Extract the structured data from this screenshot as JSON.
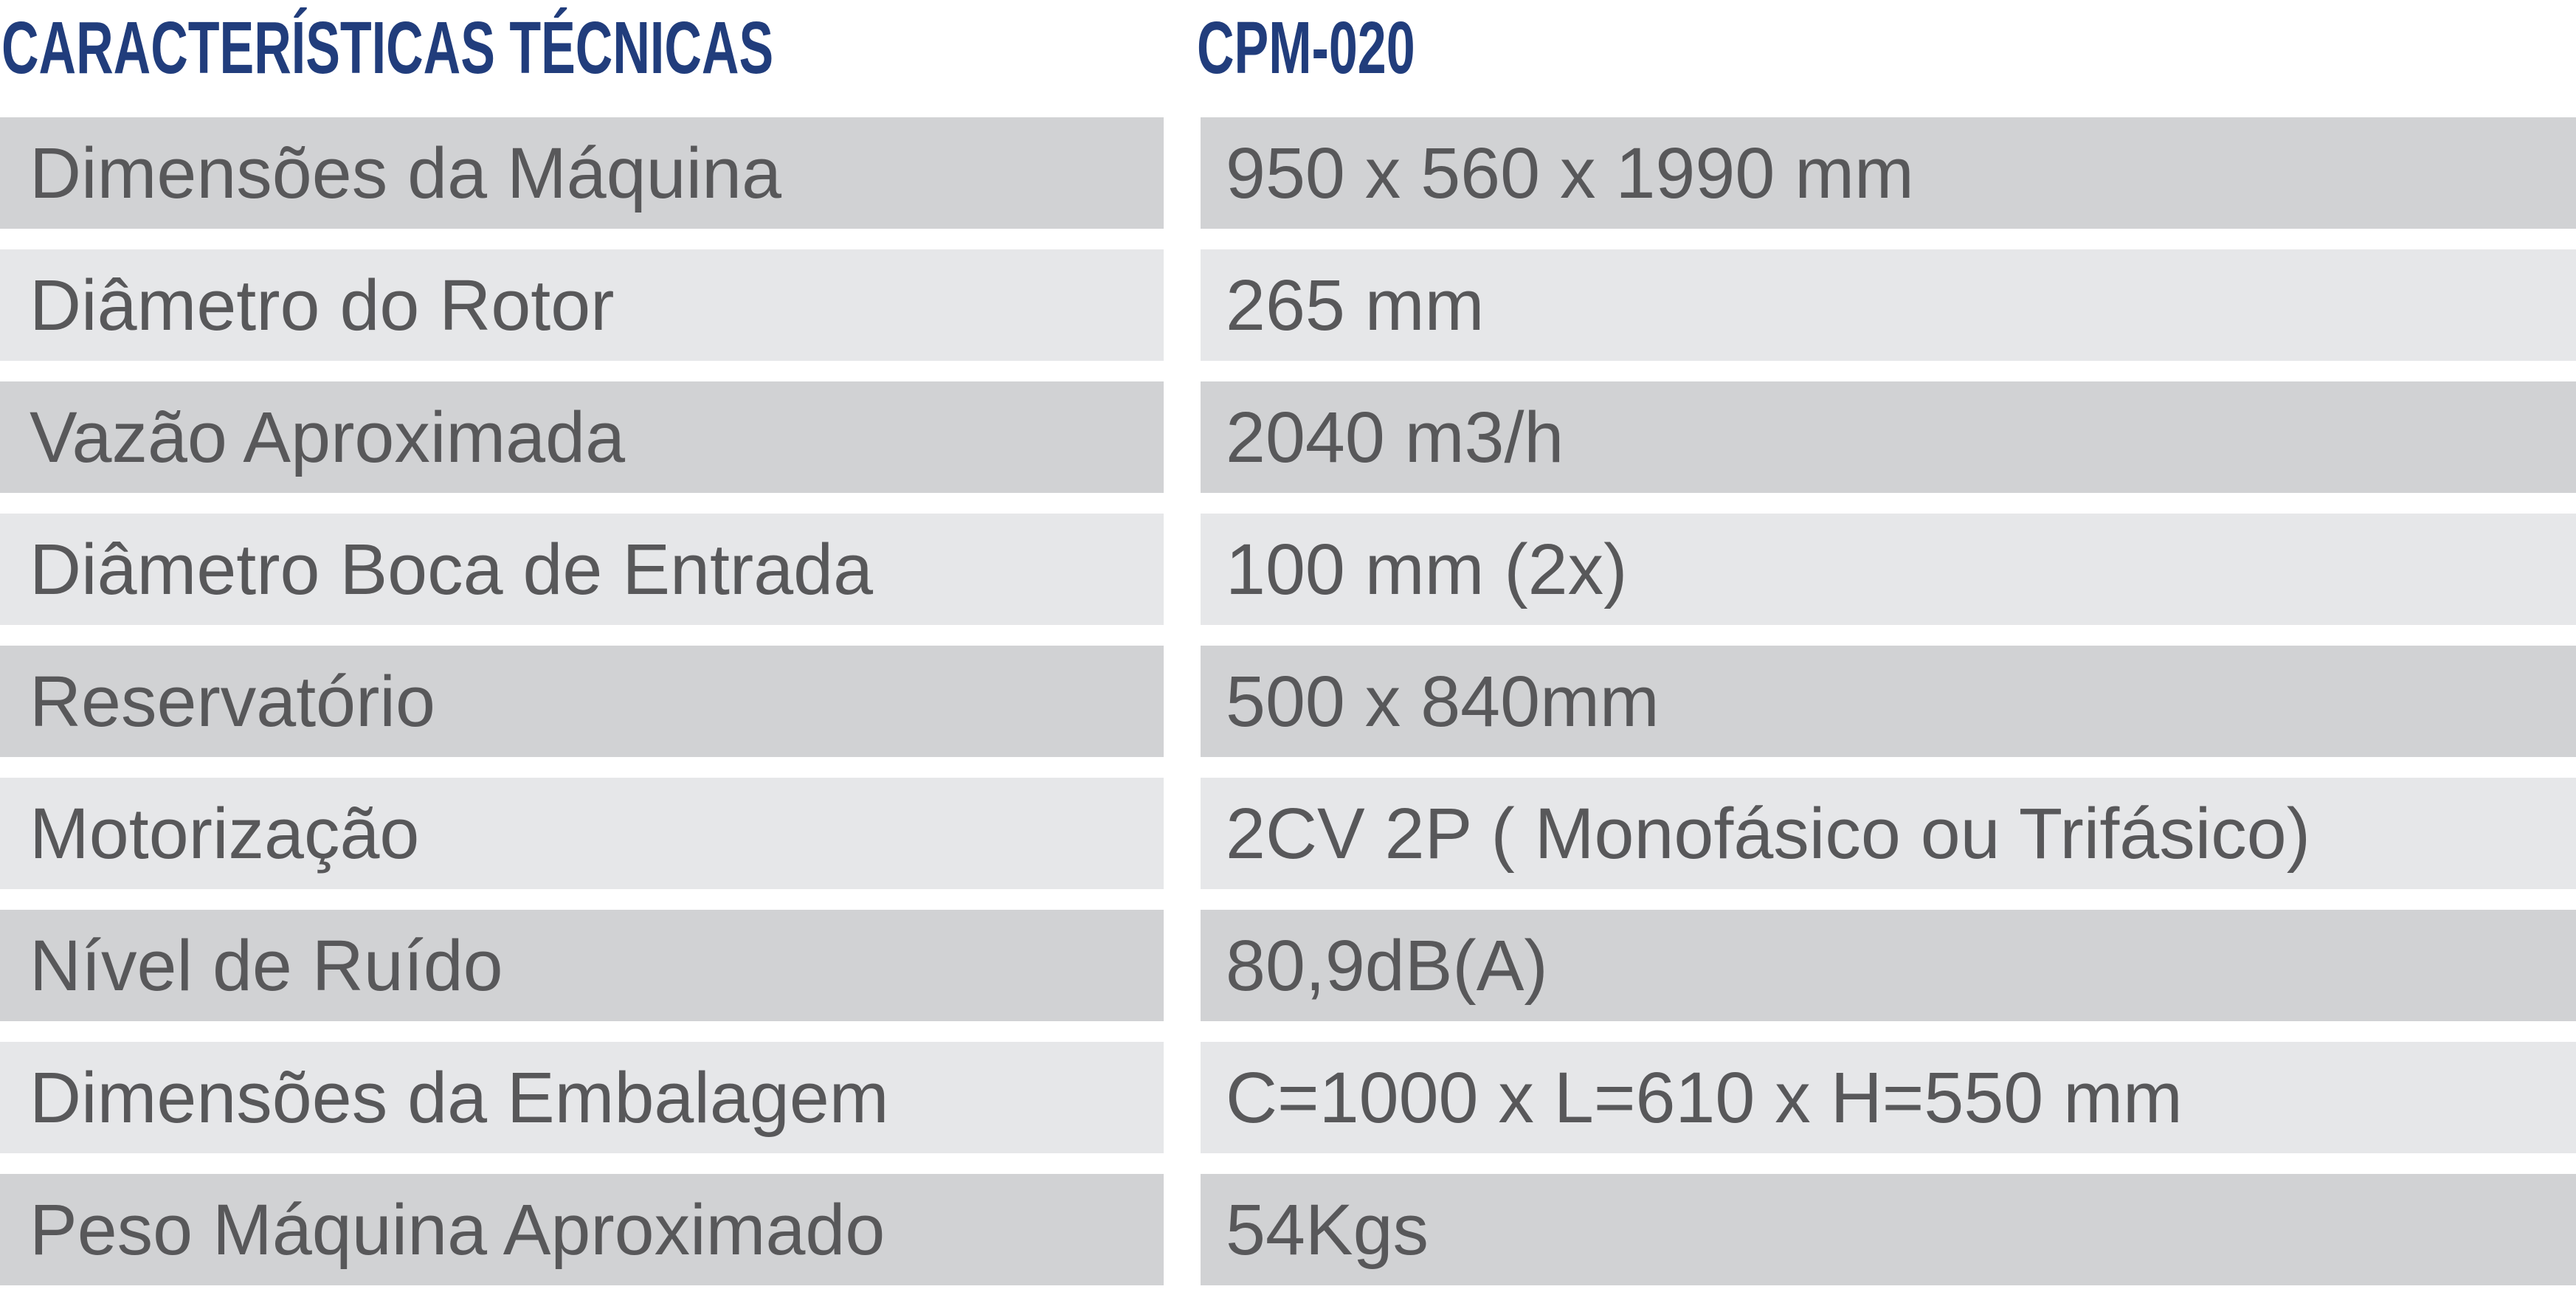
{
  "header": {
    "title": "CARACTERÍSTICAS TÉCNICAS",
    "model": "CPM-020"
  },
  "colors": {
    "header_text": "#213d7c",
    "row_dark": "#d1d2d4",
    "row_light": "#e6e7e9",
    "cell_text": "#58585a"
  },
  "specs": [
    {
      "label": "Dimensões da Máquina",
      "value": "950 x 560 x 1990 mm"
    },
    {
      "label": "Diâmetro do Rotor",
      "value": "265 mm"
    },
    {
      "label": "Vazão Aproximada",
      "value": "2040 m3/h"
    },
    {
      "label": "Diâmetro Boca de Entrada",
      "value": "100 mm (2x)"
    },
    {
      "label": "Reservatório",
      "value": "500 x 840mm"
    },
    {
      "label": "Motorização",
      "value": "2CV 2P ( Monofásico ou Trifásico)"
    },
    {
      "label": "Nível de Ruído",
      "value": "80,9dB(A)"
    },
    {
      "label": "Dimensões da Embalagem",
      "value": "C=1000 x L=610 x H=550 mm"
    },
    {
      "label": "Peso Máquina Aproximado",
      "value": "54Kgs"
    }
  ]
}
